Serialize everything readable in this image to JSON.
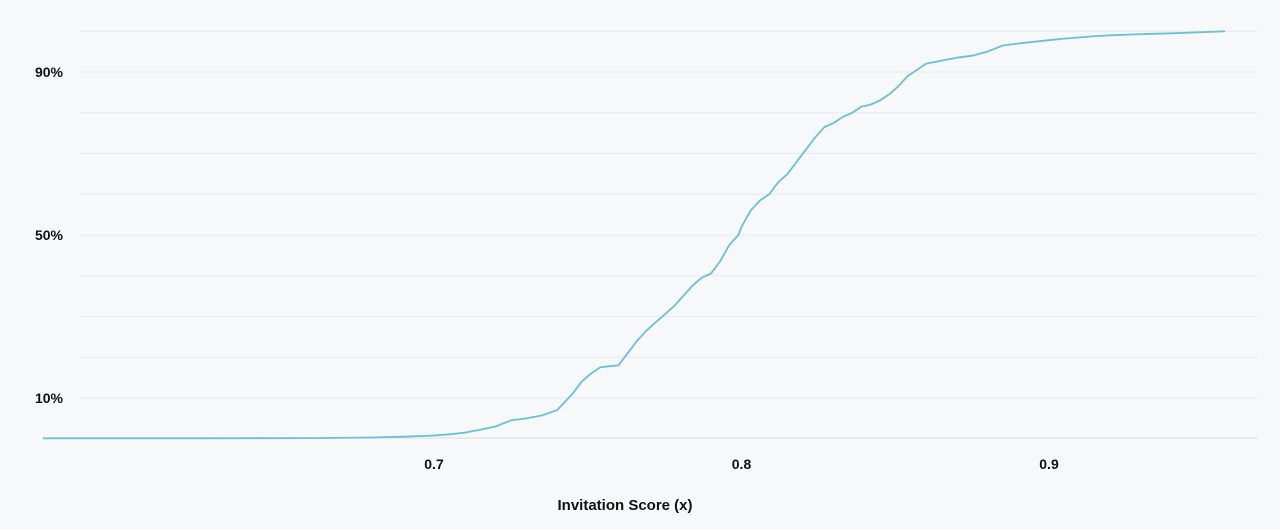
{
  "chart_data": {
    "type": "line",
    "title": "",
    "xlabel": "Invitation Score (x)",
    "ylabel": "",
    "xlim": [
      0.573,
      0.96
    ],
    "ylim": [
      0,
      100
    ],
    "x_ticks": [
      {
        "value": 0.7,
        "label": "0.7"
      },
      {
        "value": 0.8,
        "label": "0.8"
      },
      {
        "value": 0.9,
        "label": "0.9"
      }
    ],
    "y_ticks": [
      {
        "value": 10,
        "label": "10%"
      },
      {
        "value": 50,
        "label": "50%"
      },
      {
        "value": 90,
        "label": "90%"
      }
    ],
    "grid": true,
    "legend": "none",
    "series": [
      {
        "color": "#6bbfd6",
        "x": [
          0.573,
          0.62,
          0.66,
          0.68,
          0.69,
          0.7,
          0.705,
          0.71,
          0.715,
          0.72,
          0.725,
          0.73,
          0.735,
          0.74,
          0.745,
          0.748,
          0.751,
          0.754,
          0.757,
          0.76,
          0.763,
          0.766,
          0.769,
          0.772,
          0.775,
          0.778,
          0.781,
          0.784,
          0.787,
          0.79,
          0.793,
          0.796,
          0.799,
          0.8,
          0.803,
          0.806,
          0.809,
          0.812,
          0.815,
          0.818,
          0.821,
          0.824,
          0.827,
          0.83,
          0.833,
          0.836,
          0.839,
          0.842,
          0.845,
          0.848,
          0.851,
          0.854,
          0.857,
          0.86,
          0.865,
          0.87,
          0.875,
          0.88,
          0.885,
          0.89,
          0.895,
          0.9,
          0.905,
          0.91,
          0.915,
          0.92,
          0.93,
          0.94,
          0.95,
          0.957
        ],
        "y": [
          0.1,
          0.1,
          0.15,
          0.3,
          0.5,
          0.8,
          1.1,
          1.5,
          2.2,
          3.0,
          4.5,
          5.0,
          5.7,
          7.0,
          11.0,
          14.0,
          16.0,
          17.5,
          17.8,
          18.0,
          21.0,
          24.0,
          26.5,
          28.5,
          30.5,
          32.5,
          35.0,
          37.5,
          39.5,
          40.5,
          43.5,
          47.5,
          50.0,
          52.0,
          56.0,
          58.5,
          60.0,
          63.0,
          65.0,
          68.0,
          71.0,
          74.0,
          76.5,
          77.5,
          79.0,
          80.0,
          81.5,
          82.0,
          83.0,
          84.5,
          86.5,
          89.0,
          90.5,
          92.0,
          92.8,
          93.5,
          94.0,
          95.0,
          96.5,
          97.0,
          97.4,
          97.8,
          98.2,
          98.5,
          98.8,
          99.0,
          99.3,
          99.5,
          99.8,
          100.0
        ]
      }
    ]
  }
}
